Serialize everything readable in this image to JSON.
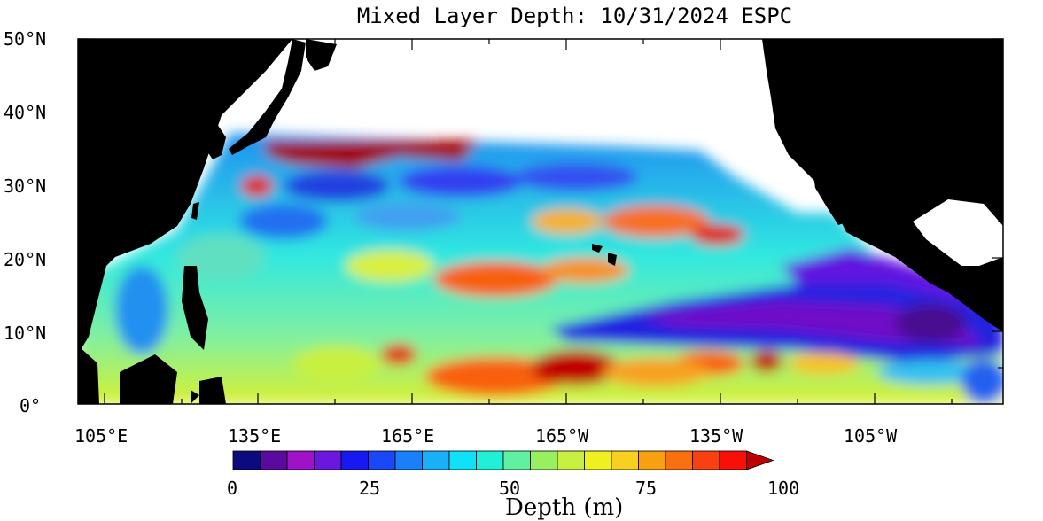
{
  "title": "Mixed Layer Depth: 10/31/2024 ESPC",
  "lat_labels": [
    "50°N",
    "40°N",
    "30°N",
    "20°N",
    "10°N",
    "0°"
  ],
  "lon_labels": [
    "105°E",
    "135°E",
    "165°E",
    "165°W",
    "135°W",
    "105°W"
  ],
  "colorbar": {
    "title": "Depth (m)",
    "tick_labels": [
      "0",
      "25",
      "50",
      "75",
      "100"
    ],
    "min": 0,
    "max": 100,
    "colors": [
      "#0b0a7e",
      "#5a0aa0",
      "#a012c8",
      "#6a18e0",
      "#1818f0",
      "#1848f8",
      "#1880f8",
      "#18b0f8",
      "#10e0f8",
      "#20f0d8",
      "#60f0a0",
      "#98f060",
      "#c8f040",
      "#f0f020",
      "#f8d020",
      "#f8a010",
      "#f87010",
      "#f84010",
      "#f81008",
      "#c00000"
    ]
  }
}
